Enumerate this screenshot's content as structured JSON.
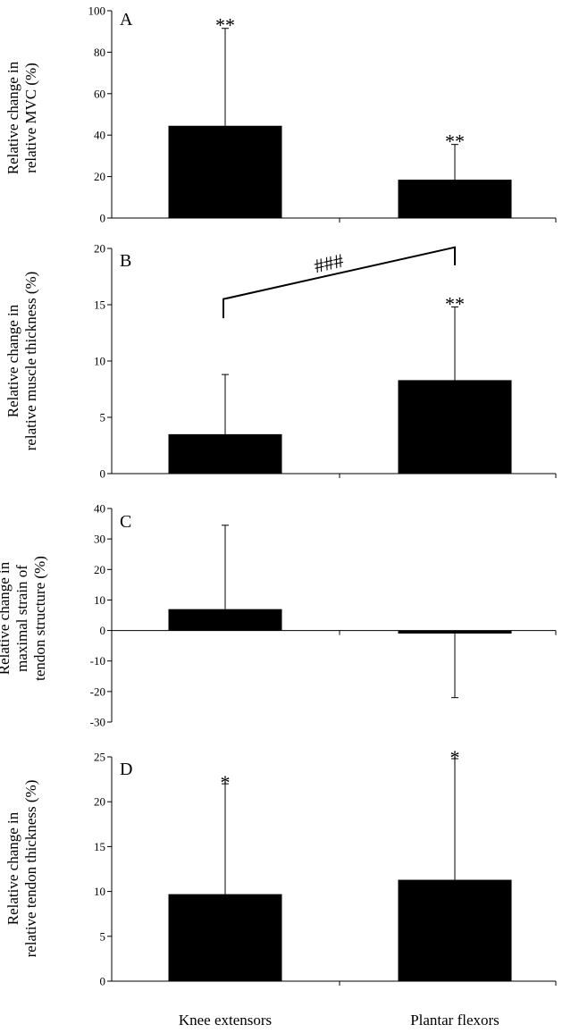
{
  "x_categories": [
    "Knee extensors",
    "Plantar flexors"
  ],
  "chart_data": [
    {
      "type": "bar",
      "panel_label": "A",
      "ylabel": [
        "Relative change in",
        "relative MVC (%)"
      ],
      "categories": [
        "Knee extensors",
        "Plantar flexors"
      ],
      "values": [
        44.5,
        18.5
      ],
      "error_upper": [
        91.5,
        35.5
      ],
      "ylim": [
        0,
        100
      ],
      "yticks": [
        0,
        20,
        40,
        60,
        80,
        100
      ],
      "annotations": [
        "**",
        "**"
      ],
      "bracket": null
    },
    {
      "type": "bar",
      "panel_label": "B",
      "ylabel": [
        "Relative change in",
        "relative muscle thickness (%)"
      ],
      "categories": [
        "Knee extensors",
        "Plantar flexors"
      ],
      "values": [
        3.5,
        8.3
      ],
      "error_upper": [
        8.8,
        14.8
      ],
      "ylim": [
        0,
        20
      ],
      "yticks": [
        0,
        5,
        10,
        15,
        20
      ],
      "annotations": [
        "",
        "**"
      ],
      "bracket": {
        "label": "###",
        "left_low": 13.8,
        "left_high": 15.5,
        "right_high": 20.1,
        "right_low": 18.5
      }
    },
    {
      "type": "bar",
      "panel_label": "C",
      "ylabel": [
        "Relative change in",
        "maximal strain of",
        "tendon structure (%)"
      ],
      "categories": [
        "Knee extensors",
        "Plantar flexors"
      ],
      "values": [
        7,
        -1
      ],
      "error_upper": [
        34.5,
        -22
      ],
      "ylim": [
        -30,
        40
      ],
      "yticks": [
        -30,
        -20,
        -10,
        0,
        10,
        20,
        30,
        40
      ],
      "annotations": [
        "",
        ""
      ],
      "bracket": null
    },
    {
      "type": "bar",
      "panel_label": "D",
      "ylabel": [
        "Relative change in",
        "relative tendon thickness (%)"
      ],
      "categories": [
        "Knee extensors",
        "Plantar flexors"
      ],
      "values": [
        9.7,
        11.3
      ],
      "error_upper": [
        22,
        24.8
      ],
      "ylim": [
        0,
        25
      ],
      "yticks": [
        0,
        5,
        10,
        15,
        20,
        25
      ],
      "annotations": [
        "*",
        "*"
      ],
      "bracket": null
    }
  ]
}
